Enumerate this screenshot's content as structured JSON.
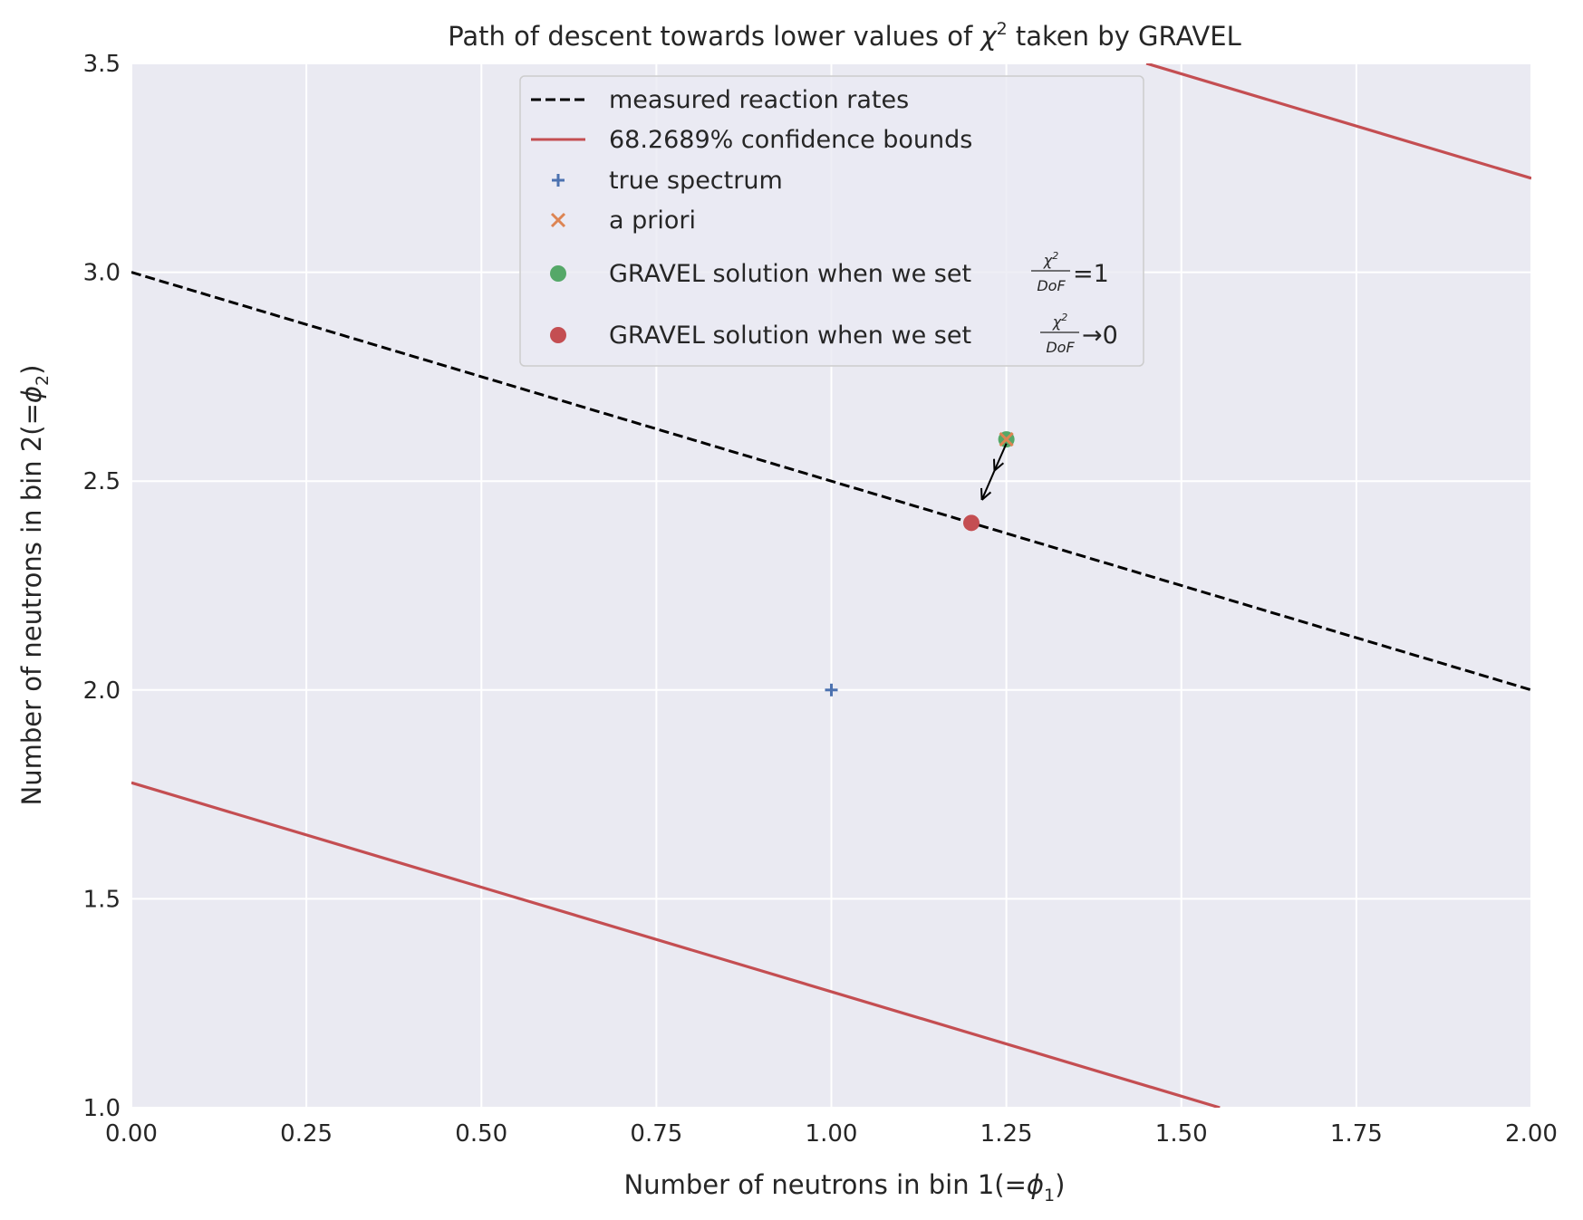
{
  "chart_data": {
    "type": "scatter",
    "title_prefix": "Path of descent towards lower values of ",
    "title_symbol": "χ",
    "title_exp": "2",
    "title_suffix": " taken by GRAVEL",
    "xlabel_text": "Number of neutrons in bin 1(",
    "xlabel_math": "=ϕ",
    "xlabel_sub": "1",
    "xlabel_close": ")",
    "ylabel_text": "Number of neutrons in bin 2(",
    "ylabel_math": "=ϕ",
    "ylabel_sub": "2",
    "ylabel_close": ")",
    "xlim": [
      0.0,
      2.0
    ],
    "ylim": [
      1.0,
      3.5
    ],
    "xticks": [
      "0.00",
      "0.25",
      "0.50",
      "0.75",
      "1.00",
      "1.25",
      "1.50",
      "1.75",
      "2.00"
    ],
    "yticks": [
      "1.0",
      "1.5",
      "2.0",
      "2.5",
      "3.0",
      "3.5"
    ],
    "grid": true,
    "legend_location": "upper center",
    "series": [
      {
        "name": "measured reaction rates",
        "kind": "line",
        "style": "dashed",
        "color": "#000000",
        "x": [
          0.0,
          2.0
        ],
        "y": [
          3.0,
          2.0
        ]
      },
      {
        "name": "68.2689% confidence bounds",
        "kind": "line",
        "style": "solid",
        "color": "#c44e52",
        "segments": [
          {
            "x": [
              1.45,
              2.0
            ],
            "y": [
              3.5,
              3.225
            ]
          },
          {
            "x": [
              0.0,
              1.555
            ],
            "y": [
              1.778,
              1.0
            ]
          }
        ]
      },
      {
        "name": "true spectrum",
        "kind": "marker",
        "marker": "plus",
        "color": "#4c72b0",
        "x": [
          1.0
        ],
        "y": [
          2.0
        ]
      },
      {
        "name": "a priori",
        "kind": "marker",
        "marker": "x",
        "color": "#dd8452",
        "x": [
          1.25
        ],
        "y": [
          2.6
        ]
      },
      {
        "name_prefix": "GRAVEL solution when we set ",
        "name_suffix": "=1",
        "kind": "marker",
        "marker": "circle",
        "color": "#55a868",
        "x": [
          1.25
        ],
        "y": [
          2.6
        ]
      },
      {
        "name_prefix": "GRAVEL solution when we set ",
        "name_suffix": "→0",
        "kind": "marker",
        "marker": "circle",
        "color": "#c44e52",
        "x": [
          1.2
        ],
        "y": [
          2.4
        ]
      }
    ],
    "descent_arrows": [
      {
        "from": [
          1.25,
          2.59
        ],
        "to": [
          1.233,
          2.525
        ]
      },
      {
        "from": [
          1.233,
          2.525
        ],
        "to": [
          1.215,
          2.455
        ]
      }
    ],
    "legend_frac_num": "χ",
    "legend_frac_num_exp": "2",
    "legend_frac_den": "DoF"
  },
  "colors": {
    "axes_bg": "#eaeaf2",
    "grid": "#ffffff",
    "text": "#262626"
  }
}
